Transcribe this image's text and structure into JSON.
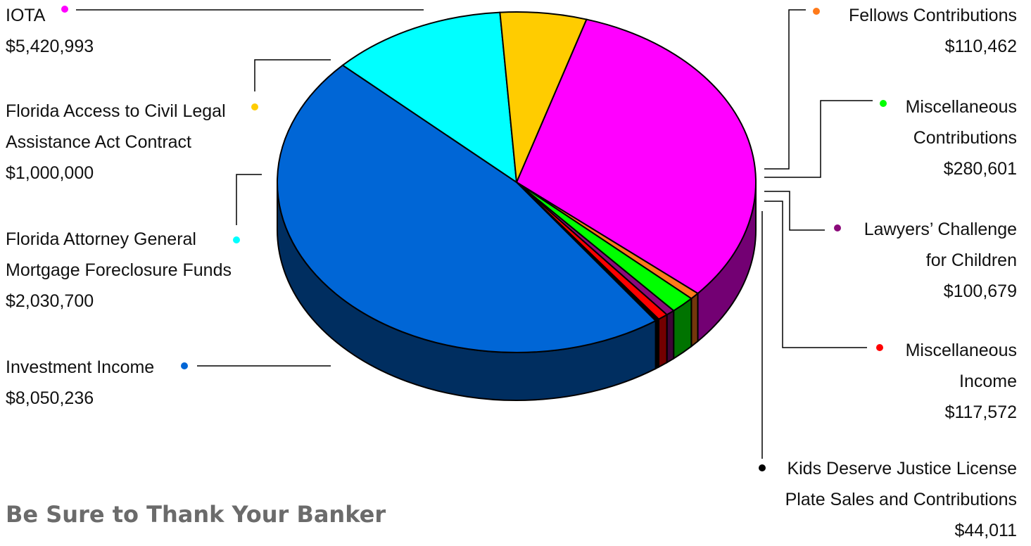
{
  "chart_data": {
    "type": "pie",
    "title": "",
    "slices": [
      {
        "label_lines": [
          "IOTA"
        ],
        "value_text": "$5,420,993",
        "value": 5420993,
        "color": "#ff00ff"
      },
      {
        "label_lines": [
          "Fellows Contributions"
        ],
        "value_text": "$110,462",
        "value": 110462,
        "color": "#ff7a1a"
      },
      {
        "label_lines": [
          "Miscellaneous",
          "Contributions"
        ],
        "value_text": "$280,601",
        "value": 280601,
        "color": "#00ff00"
      },
      {
        "label_lines": [
          "Lawyers’ Challenge",
          "for Children"
        ],
        "value_text": "$100,679",
        "value": 100679,
        "color": "#8b0a7a"
      },
      {
        "label_lines": [
          "Miscellaneous",
          "Income"
        ],
        "value_text": "$117,572",
        "value": 117572,
        "color": "#ff0000"
      },
      {
        "label_lines": [
          "Kids Deserve Justice License",
          "Plate Sales and Contributions"
        ],
        "value_text": "$44,011",
        "value": 44011,
        "color": "#000000"
      },
      {
        "label_lines": [
          "Investment Income"
        ],
        "value_text": "$8,050,236",
        "value": 8050236,
        "color": "#0066d6"
      },
      {
        "label_lines": [
          "Florida Attorney General",
          "Mortgage Foreclosure Funds"
        ],
        "value_text": "$2,030,700",
        "value": 2030700,
        "color": "#00ffff"
      },
      {
        "label_lines": [
          "Florida Access to Civil Legal",
          "Assistance Act Contract"
        ],
        "value_text": "$1,000,000",
        "value": 1000000,
        "color": "#ffcc00"
      }
    ],
    "legend": "callout labels around pie"
  },
  "footer": {
    "heading": "Be Sure to Thank Your Banker"
  }
}
